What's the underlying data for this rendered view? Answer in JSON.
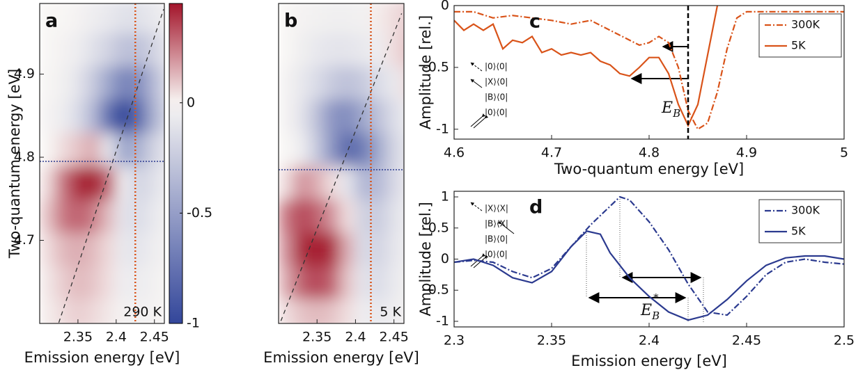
{
  "chart_data": [
    {
      "type": "heatmap",
      "label": "a",
      "annotation": "290 K",
      "xlabel": "Emission energy [eV]",
      "ylabel": "Two-quantum energy [eV]",
      "xlim": [
        2.3,
        2.463
      ],
      "ylim": [
        4.6,
        4.985
      ],
      "xticks": [
        2.35,
        2.4,
        2.45
      ],
      "yticks": [
        4.7,
        4.8,
        4.9
      ],
      "x": [
        2.31,
        2.33,
        2.35,
        2.37,
        2.39,
        2.41,
        2.43,
        2.45,
        2.47,
        2.49
      ],
      "y": [
        4.61,
        4.65,
        4.69,
        4.73,
        4.77,
        4.81,
        4.85,
        4.89,
        4.93,
        4.97
      ],
      "z": [
        [
          0.02,
          0.05,
          0.08,
          0.06,
          0.03,
          -0.02,
          -0.03,
          -0.02,
          0,
          0
        ],
        [
          0.03,
          0.08,
          0.12,
          0.1,
          0.05,
          -0.05,
          -0.06,
          -0.03,
          -0.01,
          0
        ],
        [
          0.05,
          0.12,
          0.15,
          0.12,
          0.06,
          -0.08,
          -0.1,
          -0.05,
          -0.02,
          0
        ],
        [
          0.1,
          0.25,
          0.3,
          0.25,
          0.12,
          -0.1,
          -0.15,
          -0.08,
          -0.03,
          0
        ],
        [
          0.05,
          0.25,
          0.4,
          0.44,
          0.3,
          -0.05,
          -0.2,
          -0.12,
          -0.05,
          -0.01
        ],
        [
          0,
          0.05,
          0.1,
          0.15,
          -0.1,
          -0.45,
          -0.4,
          -0.2,
          -0.08,
          -0.02
        ],
        [
          -0.02,
          -0.05,
          -0.15,
          -0.35,
          -0.75,
          -1.0,
          -0.8,
          -0.4,
          -0.15,
          -0.03
        ],
        [
          -0.01,
          -0.03,
          -0.1,
          -0.25,
          -0.45,
          -0.65,
          -0.6,
          -0.35,
          -0.12,
          -0.03
        ],
        [
          0,
          -0.02,
          -0.05,
          -0.12,
          -0.2,
          -0.3,
          -0.3,
          -0.2,
          -0.08,
          -0.02
        ],
        [
          0,
          0,
          -0.02,
          -0.05,
          -0.08,
          -0.12,
          -0.12,
          -0.08,
          -0.04,
          -0.01
        ]
      ],
      "zlim": [
        -1,
        0.45
      ],
      "colorbar_ticks": [
        -1,
        -0.5,
        0
      ],
      "colors": {
        "low": "#33469a",
        "mid": "#f8f6f4",
        "high": "#a3152b"
      },
      "vline": 2.425,
      "hline": 4.795,
      "diagonal": {
        "x": [
          2.325,
          2.462
        ],
        "y": [
          4.601,
          4.978
        ]
      }
    },
    {
      "type": "heatmap",
      "label": "b",
      "annotation": "5 K",
      "xlabel": "Emission energy [eV]",
      "xlim": [
        2.3,
        2.463
      ],
      "ylim": [
        4.6,
        4.985
      ],
      "xticks": [
        2.35,
        2.4,
        2.45
      ],
      "x": [
        2.31,
        2.33,
        2.35,
        2.37,
        2.39,
        2.41,
        2.43,
        2.45,
        2.47,
        2.49
      ],
      "y": [
        4.61,
        4.65,
        4.69,
        4.73,
        4.77,
        4.81,
        4.85,
        4.89,
        4.93,
        4.97
      ],
      "z": [
        [
          0.05,
          0.1,
          0.12,
          0.1,
          0.05,
          -0.05,
          -0.08,
          -0.05,
          -0.02,
          0
        ],
        [
          0.15,
          0.3,
          0.35,
          0.3,
          0.1,
          -0.1,
          -0.15,
          -0.08,
          -0.03,
          0
        ],
        [
          0.2,
          0.4,
          0.44,
          0.4,
          0.15,
          -0.15,
          -0.2,
          -0.1,
          -0.04,
          0
        ],
        [
          0.25,
          0.35,
          0.3,
          0.2,
          0.05,
          -0.2,
          -0.25,
          -0.12,
          -0.05,
          0
        ],
        [
          0.05,
          0.2,
          0.15,
          0.05,
          -0.1,
          -0.35,
          -0.35,
          -0.18,
          -0.06,
          0
        ],
        [
          0,
          -0.05,
          -0.25,
          -0.55,
          -0.8,
          -0.7,
          -0.45,
          -0.2,
          -0.08,
          -0.02
        ],
        [
          -0.02,
          -0.1,
          -0.3,
          -0.55,
          -0.6,
          -0.45,
          -0.3,
          -0.15,
          -0.05,
          0.05
        ],
        [
          -0.02,
          -0.08,
          -0.15,
          -0.25,
          -0.3,
          -0.25,
          -0.15,
          -0.08,
          0.05,
          0.1
        ],
        [
          0,
          -0.04,
          -0.08,
          -0.1,
          -0.1,
          -0.08,
          -0.05,
          0.05,
          0.1,
          0.1
        ],
        [
          0,
          -0.02,
          -0.03,
          -0.04,
          -0.04,
          -0.03,
          0.02,
          0.05,
          0.08,
          0.05
        ]
      ],
      "zlim": [
        -1,
        0.45
      ],
      "colors": {
        "low": "#33469a",
        "mid": "#f8f6f4",
        "high": "#a3152b"
      },
      "vline": 2.42,
      "hline": 4.785,
      "diagonal": {
        "x": [
          2.303,
          2.46
        ],
        "y": [
          4.603,
          4.973
        ]
      }
    },
    {
      "type": "line",
      "label": "c",
      "xlabel": "Two-quantum energy [eV]",
      "ylabel": "Amplitude [rel.]",
      "xlim": [
        4.6,
        5
      ],
      "ylim": [
        -1.08,
        0
      ],
      "xticks": [
        4.6,
        4.7,
        4.8,
        4.9,
        5
      ],
      "yticks": [
        -1,
        -0.5,
        0
      ],
      "legend": "upper right",
      "vline": 4.84,
      "annotation": {
        "base": "E",
        "sub": "B"
      },
      "inset": [
        "|0⟩⟨0|",
        "|X⟩⟨0|",
        "|B⟩⟨0|",
        "|0⟩⟨0|"
      ],
      "series": [
        {
          "name": "300K",
          "color": "#d95319",
          "dash": "dashdot",
          "x": [
            4.6,
            4.62,
            4.64,
            4.66,
            4.68,
            4.7,
            4.72,
            4.74,
            4.76,
            4.78,
            4.79,
            4.8,
            4.81,
            4.82,
            4.83,
            4.84,
            4.85,
            4.86,
            4.87,
            4.88,
            4.89,
            4.9,
            4.92,
            4.94,
            4.96,
            5.0
          ],
          "values": [
            -0.05,
            -0.05,
            -0.1,
            -0.08,
            -0.1,
            -0.12,
            -0.15,
            -0.12,
            -0.2,
            -0.28,
            -0.32,
            -0.3,
            -0.25,
            -0.3,
            -0.5,
            -0.85,
            -1.0,
            -0.95,
            -0.7,
            -0.35,
            -0.1,
            -0.05,
            -0.05,
            -0.05,
            -0.05,
            -0.05
          ]
        },
        {
          "name": "5K",
          "color": "#d95319",
          "dash": "solid",
          "x": [
            4.6,
            4.61,
            4.62,
            4.63,
            4.64,
            4.65,
            4.66,
            4.67,
            4.68,
            4.69,
            4.7,
            4.71,
            4.72,
            4.73,
            4.74,
            4.75,
            4.76,
            4.77,
            4.78,
            4.79,
            4.8,
            4.81,
            4.82,
            4.83,
            4.84,
            4.85,
            4.86,
            4.87,
            4.88
          ],
          "values": [
            -0.12,
            -0.2,
            -0.15,
            -0.2,
            -0.15,
            -0.35,
            -0.28,
            -0.3,
            -0.25,
            -0.38,
            -0.35,
            -0.4,
            -0.38,
            -0.4,
            -0.38,
            -0.45,
            -0.48,
            -0.55,
            -0.57,
            -0.5,
            -0.42,
            -0.42,
            -0.55,
            -0.8,
            -0.97,
            -0.8,
            -0.4,
            0,
            0.3
          ]
        }
      ]
    },
    {
      "type": "line",
      "label": "d",
      "xlabel": "Emission energy [eV]",
      "ylabel": "Amplitude [rel.]",
      "xlim": [
        2.3,
        2.5
      ],
      "ylim": [
        -1.09,
        1.09
      ],
      "xticks": [
        2.3,
        2.35,
        2.4,
        2.45,
        2.5
      ],
      "yticks": [
        -1,
        -0.5,
        0,
        0.5,
        1
      ],
      "legend": "upper right",
      "annotation": {
        "base": "E",
        "sub": "B",
        "sup": "*"
      },
      "inset": [
        "|X⟩⟨X|",
        "|B⟩⟨X|",
        "|B⟩⟨0|",
        "|0⟩⟨0|"
      ],
      "series": [
        {
          "name": "300K",
          "color": "#2b3a8f",
          "dash": "dashdot",
          "x": [
            2.3,
            2.31,
            2.32,
            2.33,
            2.34,
            2.35,
            2.36,
            2.37,
            2.38,
            2.385,
            2.39,
            2.4,
            2.41,
            2.42,
            2.43,
            2.44,
            2.45,
            2.46,
            2.47,
            2.48,
            2.49,
            2.5
          ],
          "values": [
            -0.05,
            -0.02,
            -0.05,
            -0.2,
            -0.3,
            -0.15,
            0.2,
            0.55,
            0.85,
            1.0,
            0.95,
            0.6,
            0.15,
            -0.4,
            -0.85,
            -0.9,
            -0.6,
            -0.25,
            -0.05,
            0.0,
            -0.05,
            -0.08
          ]
        },
        {
          "name": "5K",
          "color": "#2b3a8f",
          "dash": "solid",
          "x": [
            2.3,
            2.31,
            2.32,
            2.33,
            2.34,
            2.35,
            2.36,
            2.368,
            2.375,
            2.38,
            2.39,
            2.4,
            2.41,
            2.42,
            2.43,
            2.44,
            2.45,
            2.46,
            2.47,
            2.48,
            2.49,
            2.5
          ],
          "values": [
            -0.05,
            0.0,
            -0.1,
            -0.3,
            -0.38,
            -0.2,
            0.2,
            0.45,
            0.4,
            0.1,
            -0.3,
            -0.6,
            -0.85,
            -0.98,
            -0.9,
            -0.65,
            -0.35,
            -0.1,
            0.02,
            0.05,
            0.05,
            0.0
          ]
        }
      ]
    }
  ]
}
